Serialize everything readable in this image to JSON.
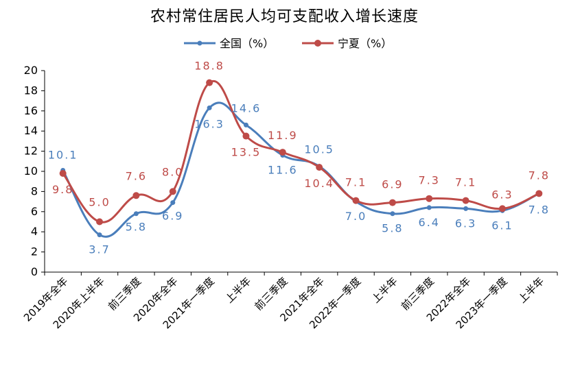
{
  "chart_data": {
    "type": "line",
    "title": "农村常住居民人均可支配收入增长速度",
    "categories": [
      "2019年全年",
      "2020年上半年",
      "前三季度",
      "2020年全年",
      "2021年一季度",
      "上半年",
      "前三季度",
      "2021年全年",
      "2022年一季度",
      "上半年",
      "前三季度",
      "2022年全年",
      "2023年一季度",
      "上半年"
    ],
    "ylim": [
      0,
      20
    ],
    "yticks": [
      0,
      2,
      4,
      6,
      8,
      10,
      12,
      14,
      16,
      18,
      20
    ],
    "grid": false,
    "legend_position": "top-center",
    "series": [
      {
        "name": "全国（%）",
        "color": "#4A7EBB",
        "values": [
          10.1,
          3.7,
          5.8,
          6.9,
          16.3,
          14.6,
          11.6,
          10.5,
          7.0,
          5.8,
          6.4,
          6.3,
          6.1,
          7.8
        ],
        "labels": [
          "10.1",
          "3.7",
          "5.8",
          "6.9",
          "16.3",
          "14.6",
          "11.6",
          "10.5",
          "7.0",
          "5.8",
          "6.4",
          "6.3",
          "6.1",
          "7.8"
        ]
      },
      {
        "name": "宁夏（%）",
        "color": "#BE4B48",
        "values": [
          9.8,
          5.0,
          7.6,
          8.0,
          18.8,
          13.5,
          11.9,
          10.4,
          7.1,
          6.9,
          7.3,
          7.1,
          6.3,
          7.8
        ],
        "labels": [
          "9.8",
          "5.0",
          "7.6",
          "8.0",
          "18.8",
          "13.5",
          "11.9",
          "10.4",
          "7.1",
          "6.9",
          "7.3",
          "7.1",
          "6.3",
          "7.8"
        ]
      }
    ]
  }
}
